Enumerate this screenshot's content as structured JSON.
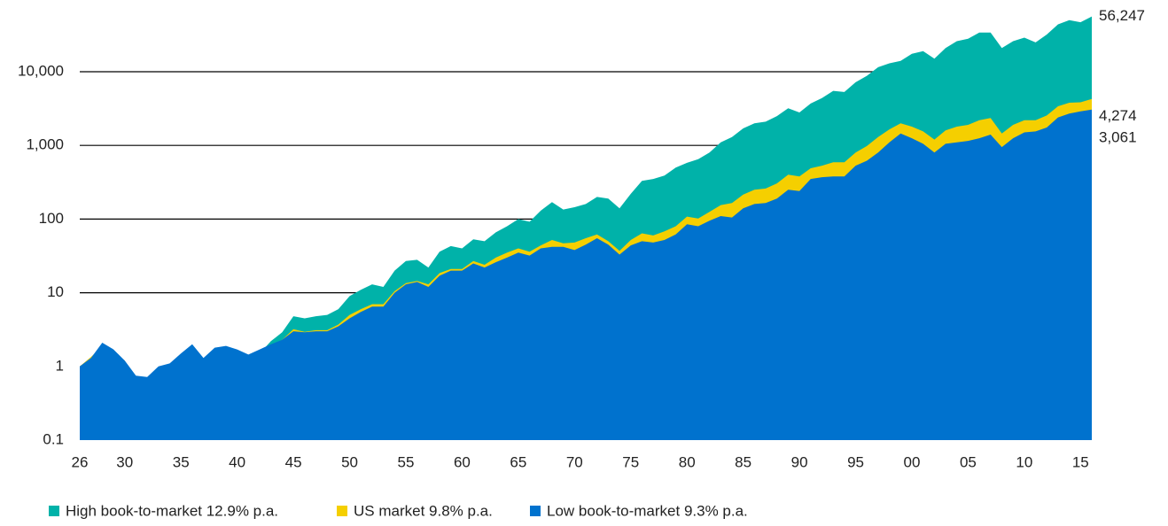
{
  "chart_data": {
    "type": "area",
    "log_scale": true,
    "grid": true,
    "categories": [
      "26",
      null,
      null,
      null,
      "30",
      null,
      null,
      null,
      null,
      "35",
      null,
      null,
      null,
      null,
      "40",
      null,
      null,
      null,
      null,
      "45",
      null,
      null,
      null,
      null,
      "50",
      null,
      null,
      null,
      null,
      "55",
      null,
      null,
      null,
      null,
      "60",
      null,
      null,
      null,
      null,
      "65",
      null,
      null,
      null,
      null,
      "70",
      null,
      null,
      null,
      null,
      "75",
      null,
      null,
      null,
      null,
      "80",
      null,
      null,
      null,
      null,
      "85",
      null,
      null,
      null,
      null,
      "90",
      null,
      null,
      null,
      null,
      "95",
      null,
      null,
      null,
      null,
      "00",
      null,
      null,
      null,
      null,
      "05",
      null,
      null,
      null,
      null,
      "10",
      null,
      null,
      null,
      null,
      "15",
      null
    ],
    "ylim": [
      0.1,
      60000
    ],
    "yticks": [
      0.1,
      1,
      10,
      100,
      {
        "value": 1000,
        "label": "1,000"
      },
      {
        "value": 10000,
        "label": "10,000"
      }
    ],
    "series": [
      {
        "name": "High book-to-market 12.9% p.a.",
        "color": "#00b2a9",
        "end_label": "56,247",
        "values": [
          1,
          1.3,
          1.7,
          1.5,
          1.1,
          0.43,
          0.43,
          0.85,
          0.85,
          1.35,
          1.6,
          1.1,
          1.35,
          1.2,
          1.1,
          1.1,
          1.5,
          2.2,
          2.9,
          4.8,
          4.5,
          4.8,
          5.0,
          6.0,
          9,
          11,
          13,
          12,
          20,
          27,
          28,
          22,
          36,
          43,
          40,
          53,
          50,
          66,
          80,
          100,
          92,
          130,
          170,
          135,
          145,
          160,
          200,
          190,
          140,
          220,
          330,
          350,
          390,
          500,
          580,
          650,
          800,
          1100,
          1300,
          1700,
          2000,
          2100,
          2500,
          3200,
          2800,
          3700,
          4400,
          5500,
          5300,
          7200,
          8800,
          11500,
          13000,
          14000,
          17500,
          19000,
          15000,
          21000,
          26000,
          28000,
          34000,
          34000,
          21000,
          26000,
          29000,
          25000,
          32000,
          44000,
          50000,
          47000,
          56247
        ]
      },
      {
        "name": "US market 9.8% p.a.",
        "color": "#f5cf00",
        "end_label": "4,274",
        "values": [
          1.0,
          1.35,
          1.85,
          1.6,
          1.2,
          0.6,
          0.55,
          0.9,
          0.9,
          1.3,
          1.7,
          1.1,
          1.45,
          1.5,
          1.35,
          1.2,
          1.45,
          1.9,
          2.3,
          3.2,
          2.95,
          3.1,
          3.1,
          3.7,
          5,
          6,
          7,
          7,
          10.5,
          13.5,
          14.5,
          13,
          18.5,
          21,
          21,
          27,
          24,
          30,
          35,
          40,
          36,
          44,
          52,
          47,
          48,
          55,
          62,
          50,
          37,
          52,
          64,
          60,
          68,
          80,
          108,
          102,
          125,
          155,
          165,
          215,
          250,
          260,
          305,
          400,
          380,
          490,
          530,
          590,
          590,
          800,
          980,
          1300,
          1650,
          2000,
          1800,
          1550,
          1200,
          1600,
          1800,
          1900,
          2200,
          2350,
          1450,
          1900,
          2200,
          2200,
          2550,
          3400,
          3800,
          3850,
          4274
        ]
      },
      {
        "name": "Low book-to-market 9.3% p.a.",
        "color": "#0072ce",
        "end_label": "3,061",
        "values": [
          1,
          1.3,
          2.1,
          1.7,
          1.2,
          0.75,
          0.72,
          1.0,
          1.1,
          1.5,
          2.0,
          1.3,
          1.8,
          1.9,
          1.7,
          1.45,
          1.7,
          2.0,
          2.3,
          3.0,
          2.9,
          3.0,
          3.0,
          3.5,
          4.5,
          5.5,
          6.5,
          6.5,
          10,
          13,
          14,
          12,
          17,
          20,
          20,
          25,
          22,
          26,
          30,
          35,
          32,
          40,
          42,
          42,
          38,
          45,
          55,
          45,
          33,
          44,
          50,
          48,
          52,
          62,
          85,
          80,
          95,
          110,
          105,
          140,
          160,
          165,
          190,
          250,
          240,
          350,
          370,
          380,
          380,
          530,
          620,
          800,
          1100,
          1450,
          1250,
          1050,
          800,
          1050,
          1100,
          1150,
          1250,
          1400,
          950,
          1250,
          1500,
          1550,
          1750,
          2400,
          2700,
          2900,
          3061
        ]
      }
    ]
  }
}
